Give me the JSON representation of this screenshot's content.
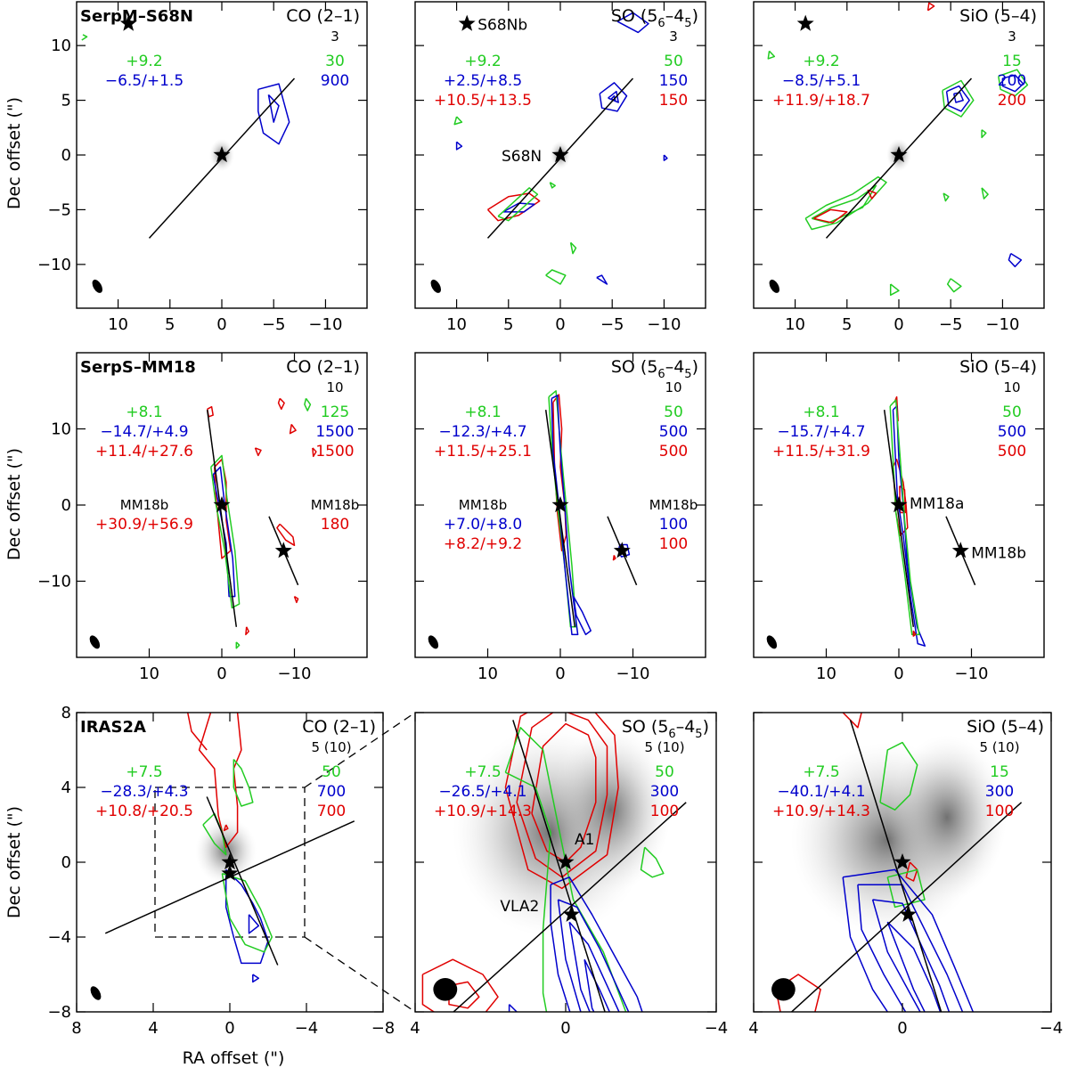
{
  "figure": {
    "y_axis_label": "Dec offset (\")",
    "x_axis_label": "RA offset (\")"
  },
  "colors": {
    "green": "#22cc22",
    "blue": "#0000cc",
    "red": "#e00000",
    "black": "#000000"
  },
  "chart_data": [
    {
      "type": "contour-map",
      "id": "s68n-co",
      "source": "SerpM–S68N",
      "line": "CO (2–1)",
      "line_sub": null,
      "xlim": [
        14,
        -14
      ],
      "ylim": [
        -14,
        14
      ],
      "xticks": [
        10,
        5,
        0,
        -5,
        -10
      ],
      "yticks": [
        10,
        5,
        0,
        -5,
        -10
      ],
      "xtick_labels": [
        "10",
        "5",
        "0",
        "−5",
        "−10"
      ],
      "ytick_labels": [
        "10",
        "5",
        "0",
        "−5",
        "−10"
      ],
      "rms": "3",
      "velocities": [
        {
          "color": "green",
          "text": "+9.2"
        },
        {
          "color": "blue",
          "text": "−6.5/+1.5"
        }
      ],
      "levels": [
        {
          "color": "green",
          "text": "30"
        },
        {
          "color": "blue",
          "text": "900"
        }
      ],
      "stars": [
        {
          "x": 0,
          "y": 0,
          "label": ""
        },
        {
          "x": 9,
          "y": 12,
          "label": ""
        }
      ],
      "axis_lines": [
        [
          [
            7,
            -7.6
          ],
          [
            -7,
            7
          ]
        ]
      ],
      "beam": {
        "x": 12,
        "y": -12
      }
    },
    {
      "type": "contour-map",
      "id": "s68n-so",
      "source": "",
      "line": "SO (5",
      "line_sub": [
        "6",
        "4",
        "5"
      ],
      "xlim": [
        14,
        -14
      ],
      "ylim": [
        -14,
        14
      ],
      "xticks": [
        10,
        5,
        0,
        -5,
        -10
      ],
      "yticks": [
        10,
        5,
        0,
        -5,
        -10
      ],
      "xtick_labels": [
        "10",
        "5",
        "0",
        "−5",
        "−10"
      ],
      "ytick_labels": [],
      "rms": "3",
      "velocities": [
        {
          "color": "green",
          "text": "+9.2"
        },
        {
          "color": "blue",
          "text": "+2.5/+8.5"
        },
        {
          "color": "red",
          "text": "+10.5/+13.5"
        }
      ],
      "levels": [
        {
          "color": "green",
          "text": "50"
        },
        {
          "color": "blue",
          "text": "150"
        },
        {
          "color": "red",
          "text": "150"
        }
      ],
      "stars": [
        {
          "x": 0,
          "y": 0,
          "label": "S68N"
        },
        {
          "x": 9,
          "y": 12,
          "label": "S68Nb"
        }
      ],
      "axis_lines": [
        [
          [
            7,
            -7.6
          ],
          [
            -7,
            7
          ]
        ]
      ],
      "beam": {
        "x": 12,
        "y": -12
      }
    },
    {
      "type": "contour-map",
      "id": "s68n-sio",
      "source": "",
      "line": "SiO (5–4)",
      "line_sub": null,
      "xlim": [
        14,
        -14
      ],
      "ylim": [
        -14,
        14
      ],
      "xticks": [
        10,
        5,
        0,
        -5,
        -10
      ],
      "yticks": [
        10,
        5,
        0,
        -5,
        -10
      ],
      "xtick_labels": [
        "10",
        "5",
        "0",
        "−5",
        "−10"
      ],
      "ytick_labels": [],
      "rms": "3",
      "velocities": [
        {
          "color": "green",
          "text": "+9.2"
        },
        {
          "color": "blue",
          "text": "−8.5/+5.1"
        },
        {
          "color": "red",
          "text": "+11.9/+18.7"
        }
      ],
      "levels": [
        {
          "color": "green",
          "text": "15"
        },
        {
          "color": "blue",
          "text": "200"
        },
        {
          "color": "red",
          "text": "200"
        }
      ],
      "stars": [
        {
          "x": 0,
          "y": 0,
          "label": ""
        },
        {
          "x": 9,
          "y": 12,
          "label": ""
        }
      ],
      "axis_lines": [
        [
          [
            7,
            -7.6
          ],
          [
            -7,
            7
          ]
        ]
      ],
      "beam": {
        "x": 12,
        "y": -12
      }
    },
    {
      "type": "contour-map",
      "id": "mm18-co",
      "source": "SerpS–MM18",
      "line": "CO (2–1)",
      "line_sub": null,
      "xlim": [
        20,
        -20
      ],
      "ylim": [
        -20,
        20
      ],
      "xticks": [
        10,
        0,
        -10
      ],
      "yticks": [
        10,
        0,
        -10
      ],
      "xtick_labels": [
        "10",
        "0",
        "−10"
      ],
      "ytick_labels": [
        "10",
        "0",
        "−10"
      ],
      "rms": "10",
      "velocities": [
        {
          "color": "green",
          "text": "+8.1"
        },
        {
          "color": "blue",
          "text": "−14.7/+4.9"
        },
        {
          "color": "red",
          "text": "+11.4/+27.6"
        }
      ],
      "levels": [
        {
          "color": "green",
          "text": "125"
        },
        {
          "color": "blue",
          "text": "1500"
        },
        {
          "color": "red",
          "text": "1500"
        }
      ],
      "secondary": {
        "label": "MM18b",
        "velocities": [
          {
            "color": "black",
            "text": "MM18b"
          },
          {
            "color": "red",
            "text": "+30.9/+56.9"
          }
        ],
        "levels": [
          {
            "color": "black",
            "text": "MM18b"
          },
          {
            "color": "red",
            "text": "180"
          }
        ]
      },
      "stars": [
        {
          "x": 0,
          "y": 0,
          "label": ""
        },
        {
          "x": -8.5,
          "y": -6,
          "label": ""
        }
      ],
      "axis_lines": [
        [
          [
            2,
            12.5
          ],
          [
            -2,
            -16
          ]
        ],
        [
          [
            -6.5,
            -1.5
          ],
          [
            -10.5,
            -10.5
          ]
        ]
      ],
      "beam": {
        "x": 17.5,
        "y": -18
      }
    },
    {
      "type": "contour-map",
      "id": "mm18-so",
      "source": "",
      "line": "SO (5",
      "line_sub": [
        "6",
        "4",
        "5"
      ],
      "xlim": [
        20,
        -20
      ],
      "ylim": [
        -20,
        20
      ],
      "xticks": [
        10,
        0,
        -10
      ],
      "yticks": [
        10,
        0,
        -10
      ],
      "xtick_labels": [
        "10",
        "0",
        "−10"
      ],
      "ytick_labels": [],
      "rms": "10",
      "velocities": [
        {
          "color": "green",
          "text": "+8.1"
        },
        {
          "color": "blue",
          "text": "−12.3/+4.7"
        },
        {
          "color": "red",
          "text": "+11.5/+25.1"
        }
      ],
      "levels": [
        {
          "color": "green",
          "text": "50"
        },
        {
          "color": "blue",
          "text": "500"
        },
        {
          "color": "red",
          "text": "500"
        }
      ],
      "secondary": {
        "label": "MM18b",
        "velocities": [
          {
            "color": "black",
            "text": "MM18b"
          },
          {
            "color": "blue",
            "text": "+7.0/+8.0"
          },
          {
            "color": "red",
            "text": "+8.2/+9.2"
          }
        ],
        "levels": [
          {
            "color": "black",
            "text": "MM18b"
          },
          {
            "color": "blue",
            "text": "100"
          },
          {
            "color": "red",
            "text": "100"
          }
        ]
      },
      "stars": [
        {
          "x": 0,
          "y": 0,
          "label": ""
        },
        {
          "x": -8.5,
          "y": -6,
          "label": ""
        }
      ],
      "axis_lines": [
        [
          [
            2,
            12.5
          ],
          [
            -2,
            -16
          ]
        ],
        [
          [
            -6.5,
            -1.5
          ],
          [
            -10.5,
            -10.5
          ]
        ]
      ],
      "beam": {
        "x": 17.5,
        "y": -18
      }
    },
    {
      "type": "contour-map",
      "id": "mm18-sio",
      "source": "",
      "line": "SiO (5–4)",
      "line_sub": null,
      "xlim": [
        20,
        -20
      ],
      "ylim": [
        -20,
        20
      ],
      "xticks": [
        10,
        0,
        -10
      ],
      "yticks": [
        10,
        0,
        -10
      ],
      "xtick_labels": [
        "10",
        "0",
        "−10"
      ],
      "ytick_labels": [],
      "rms": "10",
      "velocities": [
        {
          "color": "green",
          "text": "+8.1"
        },
        {
          "color": "blue",
          "text": "−15.7/+4.7"
        },
        {
          "color": "red",
          "text": "+11.5/+31.9"
        }
      ],
      "levels": [
        {
          "color": "green",
          "text": "50"
        },
        {
          "color": "blue",
          "text": "500"
        },
        {
          "color": "red",
          "text": "500"
        }
      ],
      "stars": [
        {
          "x": 0,
          "y": 0,
          "label": "MM18a"
        },
        {
          "x": -8.5,
          "y": -6,
          "label": "MM18b"
        }
      ],
      "axis_lines": [
        [
          [
            2,
            12.5
          ],
          [
            -2,
            -16
          ]
        ],
        [
          [
            -6.5,
            -1.5
          ],
          [
            -10.5,
            -10.5
          ]
        ]
      ],
      "beam": {
        "x": 17.5,
        "y": -18
      }
    },
    {
      "type": "contour-map",
      "id": "iras-co",
      "source": "IRAS2A",
      "line": "CO (2–1)",
      "line_sub": null,
      "xlim": [
        8,
        -8
      ],
      "ylim": [
        -8,
        8
      ],
      "xticks": [
        8,
        4,
        0,
        -4,
        -8
      ],
      "yticks": [
        8,
        4,
        0,
        -4,
        -8
      ],
      "xtick_labels": [
        "8",
        "4",
        "0",
        "−4",
        "−8"
      ],
      "ytick_labels": [
        "8",
        "4",
        "0",
        "−4",
        "−8"
      ],
      "rms": "5 (10)",
      "velocities": [
        {
          "color": "green",
          "text": "+7.5"
        },
        {
          "color": "blue",
          "text": "−28.3/+4.3"
        },
        {
          "color": "red",
          "text": "+10.8/+20.5"
        }
      ],
      "levels": [
        {
          "color": "green",
          "text": "50"
        },
        {
          "color": "blue",
          "text": "700"
        },
        {
          "color": "red",
          "text": "700"
        }
      ],
      "stars": [
        {
          "x": 0,
          "y": 0,
          "label": ""
        },
        {
          "x": 0,
          "y": -0.6,
          "label": ""
        }
      ],
      "axis_lines": [
        [
          [
            6.5,
            -3.8
          ],
          [
            -6.5,
            2.2
          ]
        ],
        [
          [
            1.2,
            3.5
          ],
          [
            -2.5,
            -5.5
          ]
        ]
      ],
      "beam": {
        "x": 7,
        "y": -7
      }
    },
    {
      "type": "contour-map",
      "id": "iras-so",
      "source": "",
      "line": "SO (5",
      "line_sub": [
        "6",
        "4",
        "5"
      ],
      "xlim": [
        4,
        -4
      ],
      "ylim": [
        -4,
        4
      ],
      "xticks": [
        4,
        0,
        -4
      ],
      "yticks": [
        4,
        0,
        -4
      ],
      "xtick_labels": [
        "4",
        "0",
        "−4"
      ],
      "ytick_labels": [],
      "rms": "5 (10)",
      "velocities": [
        {
          "color": "green",
          "text": "+7.5"
        },
        {
          "color": "blue",
          "text": "−26.5/+4.1"
        },
        {
          "color": "red",
          "text": "+10.9/+14.3"
        }
      ],
      "levels": [
        {
          "color": "green",
          "text": "50"
        },
        {
          "color": "blue",
          "text": "300"
        },
        {
          "color": "red",
          "text": "100"
        }
      ],
      "stars": [
        {
          "x": 0,
          "y": 0,
          "label": "A1"
        },
        {
          "x": -0.15,
          "y": -1.4,
          "label": "VLA2"
        }
      ],
      "axis_lines": [
        [
          [
            3.2,
            -4.2
          ],
          [
            -3.2,
            1.6
          ]
        ],
        [
          [
            1.4,
            3.8
          ],
          [
            -1.2,
            -4.5
          ]
        ]
      ],
      "beam": {
        "x": 3.2,
        "y": -3.4
      }
    },
    {
      "type": "contour-map",
      "id": "iras-sio",
      "source": "",
      "line": "SiO (5–4)",
      "line_sub": null,
      "xlim": [
        4,
        -4
      ],
      "ylim": [
        -4,
        4
      ],
      "xticks": [
        4,
        0,
        -4
      ],
      "yticks": [
        4,
        0,
        -4
      ],
      "xtick_labels": [
        "4",
        "0",
        "−4"
      ],
      "ytick_labels": [],
      "rms": "5 (10)",
      "velocities": [
        {
          "color": "green",
          "text": "+7.5"
        },
        {
          "color": "blue",
          "text": "−40.1/+4.1"
        },
        {
          "color": "red",
          "text": "+10.9/+14.3"
        }
      ],
      "levels": [
        {
          "color": "green",
          "text": "15"
        },
        {
          "color": "blue",
          "text": "300"
        },
        {
          "color": "red",
          "text": "100"
        }
      ],
      "stars": [
        {
          "x": 0,
          "y": 0,
          "label": ""
        },
        {
          "x": -0.15,
          "y": -1.4,
          "label": ""
        }
      ],
      "axis_lines": [
        [
          [
            3.2,
            -4.2
          ],
          [
            -3.2,
            1.6
          ]
        ],
        [
          [
            1.4,
            3.8
          ],
          [
            -1.2,
            -4.5
          ]
        ]
      ],
      "beam": {
        "x": 3.2,
        "y": -3.4
      }
    }
  ]
}
